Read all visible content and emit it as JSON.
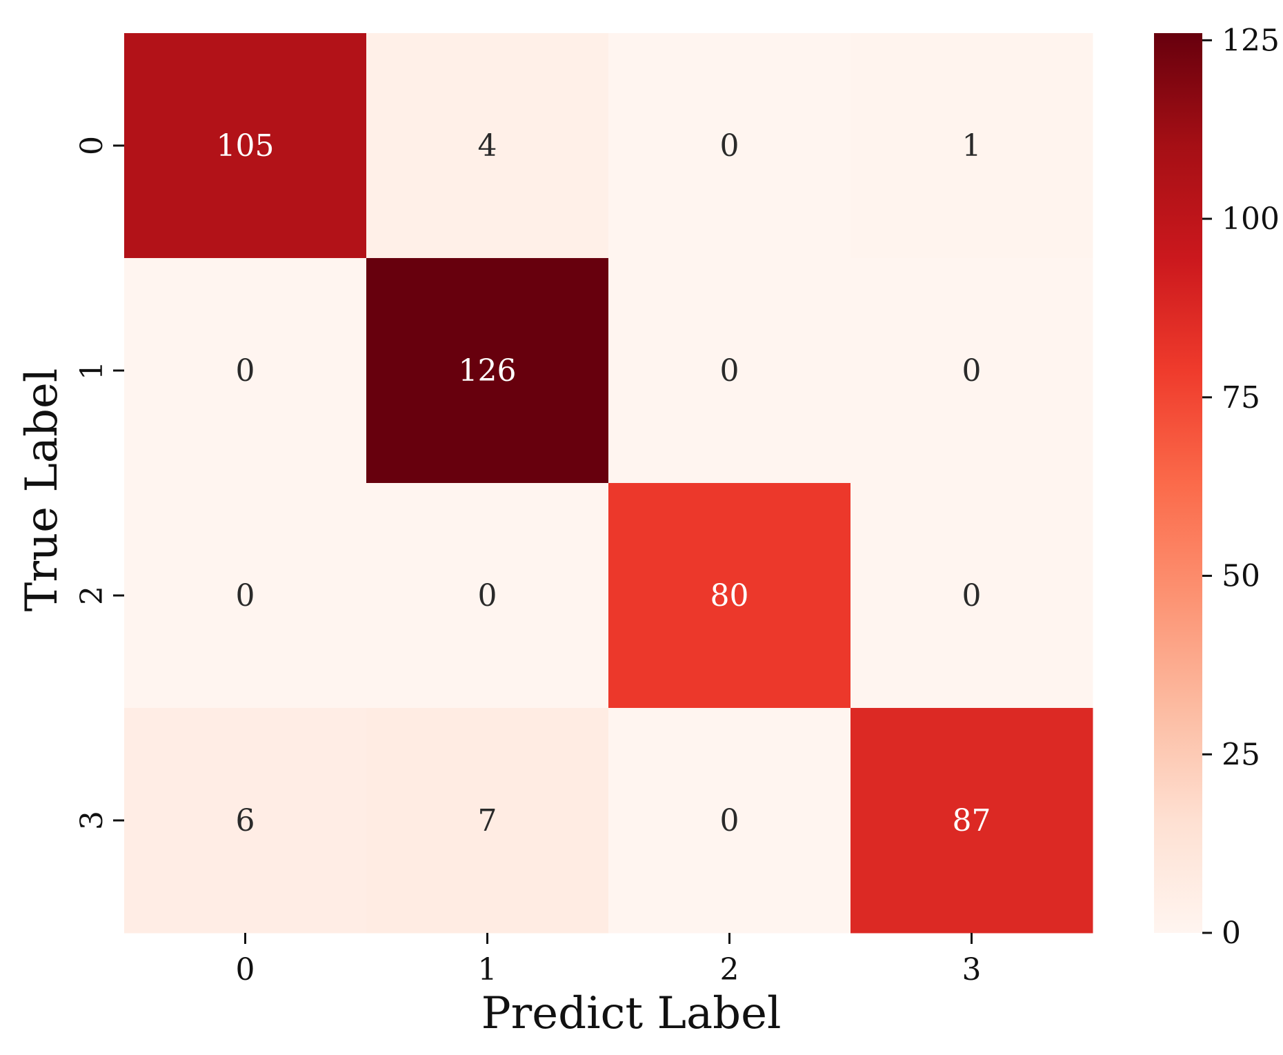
{
  "chart_data": {
    "type": "heatmap",
    "title": "",
    "xlabel": "Predict Label",
    "ylabel": "True Label",
    "x_categories": [
      "0",
      "1",
      "2",
      "3"
    ],
    "y_categories": [
      "0",
      "1",
      "2",
      "3"
    ],
    "values": [
      [
        105,
        4,
        0,
        1
      ],
      [
        0,
        126,
        0,
        0
      ],
      [
        0,
        0,
        80,
        0
      ],
      [
        6,
        7,
        0,
        87
      ]
    ],
    "colorbar": {
      "range": [
        0,
        126
      ],
      "ticks": [
        0,
        25,
        50,
        75,
        100,
        125
      ],
      "tick_labels": [
        "0",
        "25",
        "50",
        "75",
        "100",
        "125"
      ],
      "colormap": "Reds",
      "stops": [
        "#fff5f0",
        "#fee0d2",
        "#fcbba1",
        "#fc9272",
        "#fb6a4a",
        "#ef3b2c",
        "#cb181d",
        "#a50f15",
        "#67000d"
      ]
    },
    "annotation_text_dark": "#2a2a2a",
    "annotation_text_light": "#ffffff"
  }
}
